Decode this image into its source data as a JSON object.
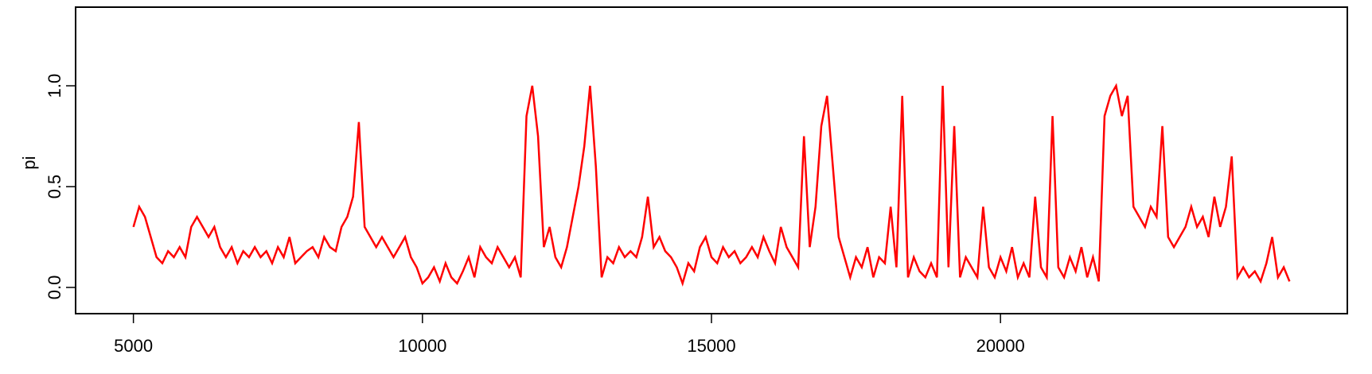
{
  "chart_data": {
    "type": "line",
    "ylabel": "pi",
    "color": "#ff0000",
    "x": [
      5000,
      5100,
      5200,
      5300,
      5400,
      5500,
      5600,
      5700,
      5800,
      5900,
      6000,
      6100,
      6200,
      6300,
      6400,
      6500,
      6600,
      6700,
      6800,
      6900,
      7000,
      7100,
      7200,
      7300,
      7400,
      7500,
      7600,
      7700,
      7800,
      7900,
      8000,
      8100,
      8200,
      8300,
      8400,
      8500,
      8600,
      8700,
      8800,
      8900,
      9000,
      9100,
      9200,
      9300,
      9400,
      9500,
      9600,
      9700,
      9800,
      9900,
      10000,
      10100,
      10200,
      10300,
      10400,
      10500,
      10600,
      10700,
      10800,
      10900,
      11000,
      11100,
      11200,
      11300,
      11400,
      11500,
      11600,
      11700,
      11800,
      11900,
      12000,
      12100,
      12200,
      12300,
      12400,
      12500,
      12600,
      12700,
      12800,
      12900,
      13000,
      13100,
      13200,
      13300,
      13400,
      13500,
      13600,
      13700,
      13800,
      13900,
      14000,
      14100,
      14200,
      14300,
      14400,
      14500,
      14600,
      14700,
      14800,
      14900,
      15000,
      15100,
      15200,
      15300,
      15400,
      15500,
      15600,
      15700,
      15800,
      15900,
      16000,
      16100,
      16200,
      16300,
      16400,
      16500,
      16600,
      16700,
      16800,
      16900,
      17000,
      17100,
      17200,
      17300,
      17400,
      17500,
      17600,
      17700,
      17800,
      17900,
      18000,
      18100,
      18200,
      18300,
      18400,
      18500,
      18600,
      18700,
      18800,
      18900,
      19000,
      19100,
      19200,
      19300,
      19400,
      19500,
      19600,
      19700,
      19800,
      19900,
      20000,
      20100,
      20200,
      20300,
      20400,
      20500,
      20600,
      20700,
      20800,
      20900,
      21000,
      21100,
      21200,
      21300,
      21400,
      21500,
      21600,
      21700,
      21800,
      21900,
      22000,
      22100,
      22200,
      22300,
      22400,
      22500,
      22600,
      22700,
      22800,
      22900,
      23000,
      23100,
      23200,
      23300,
      23400,
      23500,
      23600,
      23700,
      23800,
      23900,
      24000,
      24100,
      24200,
      24300,
      24400,
      24500,
      24600,
      24700,
      24800,
      24900,
      25000
    ],
    "values": [
      0.3,
      0.4,
      0.35,
      0.25,
      0.15,
      0.12,
      0.18,
      0.15,
      0.2,
      0.15,
      0.3,
      0.35,
      0.3,
      0.25,
      0.3,
      0.2,
      0.15,
      0.2,
      0.12,
      0.18,
      0.15,
      0.2,
      0.15,
      0.18,
      0.12,
      0.2,
      0.15,
      0.25,
      0.12,
      0.15,
      0.18,
      0.2,
      0.15,
      0.25,
      0.2,
      0.18,
      0.3,
      0.35,
      0.45,
      0.82,
      0.3,
      0.25,
      0.2,
      0.25,
      0.2,
      0.15,
      0.2,
      0.25,
      0.15,
      0.1,
      0.02,
      0.05,
      0.1,
      0.03,
      0.12,
      0.05,
      0.02,
      0.08,
      0.15,
      0.05,
      0.2,
      0.15,
      0.12,
      0.2,
      0.15,
      0.1,
      0.15,
      0.05,
      0.85,
      1.0,
      0.75,
      0.2,
      0.3,
      0.15,
      0.1,
      0.2,
      0.35,
      0.5,
      0.7,
      1.0,
      0.6,
      0.05,
      0.15,
      0.12,
      0.2,
      0.15,
      0.18,
      0.15,
      0.25,
      0.45,
      0.2,
      0.25,
      0.18,
      0.15,
      0.1,
      0.02,
      0.12,
      0.08,
      0.2,
      0.25,
      0.15,
      0.12,
      0.2,
      0.15,
      0.18,
      0.12,
      0.15,
      0.2,
      0.15,
      0.25,
      0.18,
      0.12,
      0.3,
      0.2,
      0.15,
      0.1,
      0.75,
      0.2,
      0.4,
      0.8,
      0.95,
      0.6,
      0.25,
      0.15,
      0.05,
      0.15,
      0.1,
      0.2,
      0.05,
      0.15,
      0.12,
      0.4,
      0.1,
      0.95,
      0.05,
      0.15,
      0.08,
      0.05,
      0.12,
      0.05,
      1.0,
      0.1,
      0.8,
      0.05,
      0.15,
      0.1,
      0.05,
      0.4,
      0.1,
      0.05,
      0.15,
      0.08,
      0.2,
      0.05,
      0.12,
      0.05,
      0.45,
      0.1,
      0.05,
      0.85,
      0.1,
      0.05,
      0.15,
      0.08,
      0.2,
      0.05,
      0.15,
      0.03,
      0.85,
      0.95,
      1.0,
      0.85,
      0.95,
      0.4,
      0.35,
      0.3,
      0.4,
      0.35,
      0.8,
      0.25,
      0.2,
      0.25,
      0.3,
      0.4,
      0.3,
      0.35,
      0.25,
      0.45,
      0.3,
      0.4,
      0.65,
      0.05,
      0.1,
      0.05,
      0.08,
      0.03,
      0.12,
      0.25,
      0.05,
      0.1,
      0.03
    ],
    "xlim": [
      4000,
      26000
    ],
    "ylim": [
      -0.13,
      1.39
    ],
    "xticks": [
      5000,
      10000,
      15000,
      20000
    ],
    "yticks": [
      {
        "value": 0,
        "label": "0.0"
      },
      0.5,
      {
        "value": 1,
        "label": "1.0"
      }
    ]
  }
}
